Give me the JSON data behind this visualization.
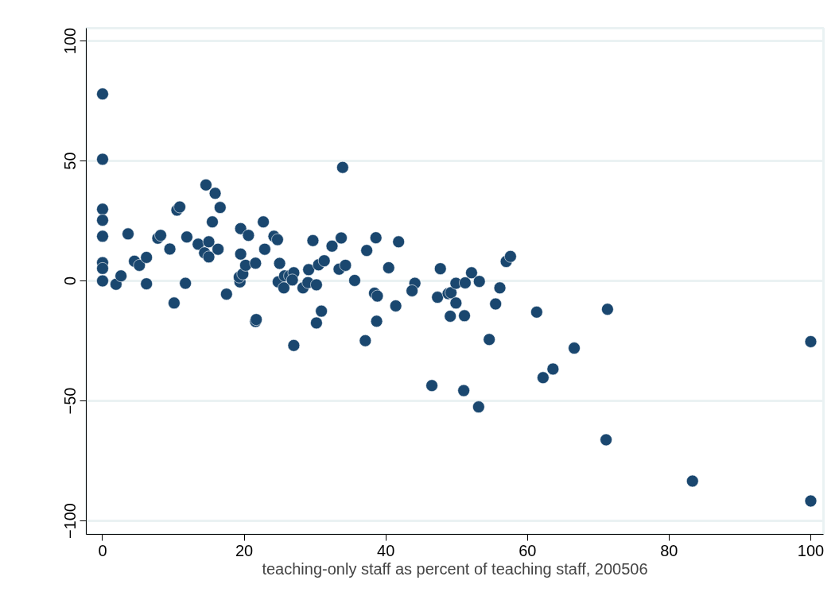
{
  "chart_data": {
    "type": "scatter",
    "xlabel": "teaching-only staff as percent of teaching staff, 200506",
    "x": [
      0,
      0,
      0,
      0,
      0,
      0,
      0,
      0,
      1.9,
      2.6,
      3.6,
      4.5,
      5.2,
      6.2,
      6.2,
      7.8,
      8.2,
      9.5,
      10.1,
      10.5,
      10.9,
      11.7,
      11.9,
      13.5,
      14.4,
      14.6,
      15,
      15,
      15.5,
      15.9,
      16.3,
      16.6,
      17.5,
      19.4,
      19.3,
      19.8,
      19.5,
      19.5,
      20.2,
      20.6,
      21.6,
      21.6,
      21.7,
      22.7,
      22.9,
      24.2,
      24.7,
      25,
      24.8,
      25.7,
      25.6,
      26.4,
      27,
      26.8,
      27,
      28.3,
      29.1,
      29,
      29.7,
      30.2,
      30.2,
      30.9,
      30.5,
      31.3,
      32.4,
      33.4,
      33.7,
      33.9,
      34.3,
      35.6,
      37.3,
      38.6,
      38.4,
      38.8,
      38.7,
      37.1,
      40.4,
      41.8,
      41.4,
      44.1,
      43.7,
      46.5,
      47.3,
      47.7,
      48.8,
      49.2,
      49.9,
      49.9,
      49.1,
      51.2,
      51.1,
      51,
      52.1,
      53.2,
      53.1,
      54.6,
      55.5,
      56.1,
      57,
      57.6,
      61.3,
      62.2,
      63.6,
      66.6,
      71.3,
      71.1,
      83.3,
      100,
      100
    ],
    "values": [
      77.9,
      50.7,
      29.9,
      25.3,
      18.6,
      7.6,
      5.2,
      0,
      -1.4,
      2.1,
      19.6,
      8.2,
      6.5,
      9.8,
      -1.2,
      17.8,
      19,
      13.3,
      -9.2,
      29.5,
      30.8,
      -1,
      18.3,
      15.3,
      11.7,
      40,
      16.3,
      10,
      24.6,
      36.5,
      13.2,
      30.6,
      -5.5,
      -0.4,
      1.6,
      2.9,
      21.8,
      11.2,
      6.5,
      19,
      7.4,
      -16.9,
      -16.1,
      24.6,
      13.2,
      18.6,
      17.2,
      7.3,
      -0.4,
      2.1,
      -2.9,
      2.1,
      3.4,
      0.4,
      -26.9,
      -2.9,
      4.7,
      -0.7,
      16.8,
      -1.6,
      -17.5,
      -12.6,
      6.7,
      8.4,
      14.5,
      4.9,
      17.9,
      47.3,
      6.5,
      0.2,
      12.7,
      18,
      -5.1,
      -6.3,
      -16.8,
      -24.9,
      5.5,
      16.3,
      -10.4,
      -1,
      -4.1,
      -43.6,
      -6.8,
      5.1,
      -5.3,
      -4.9,
      -1,
      -9.2,
      -14.7,
      -0.8,
      -14.5,
      -45.7,
      3.4,
      -0.2,
      -52.5,
      -24.4,
      -9.6,
      -2.9,
      8.1,
      10.2,
      -13,
      -40.3,
      -36.7,
      -28,
      -11.8,
      -66.2,
      -83.4,
      -25.3,
      -91.7
    ],
    "color": "#1a476f",
    "marker": "circle",
    "xlim": [
      -2.3,
      101.8
    ],
    "ylim": [
      -105.6,
      105.3
    ],
    "xticks": [
      0,
      20,
      40,
      60,
      80,
      100
    ],
    "yticks": [
      -100,
      -50,
      0,
      50,
      100
    ],
    "grid": "y"
  }
}
